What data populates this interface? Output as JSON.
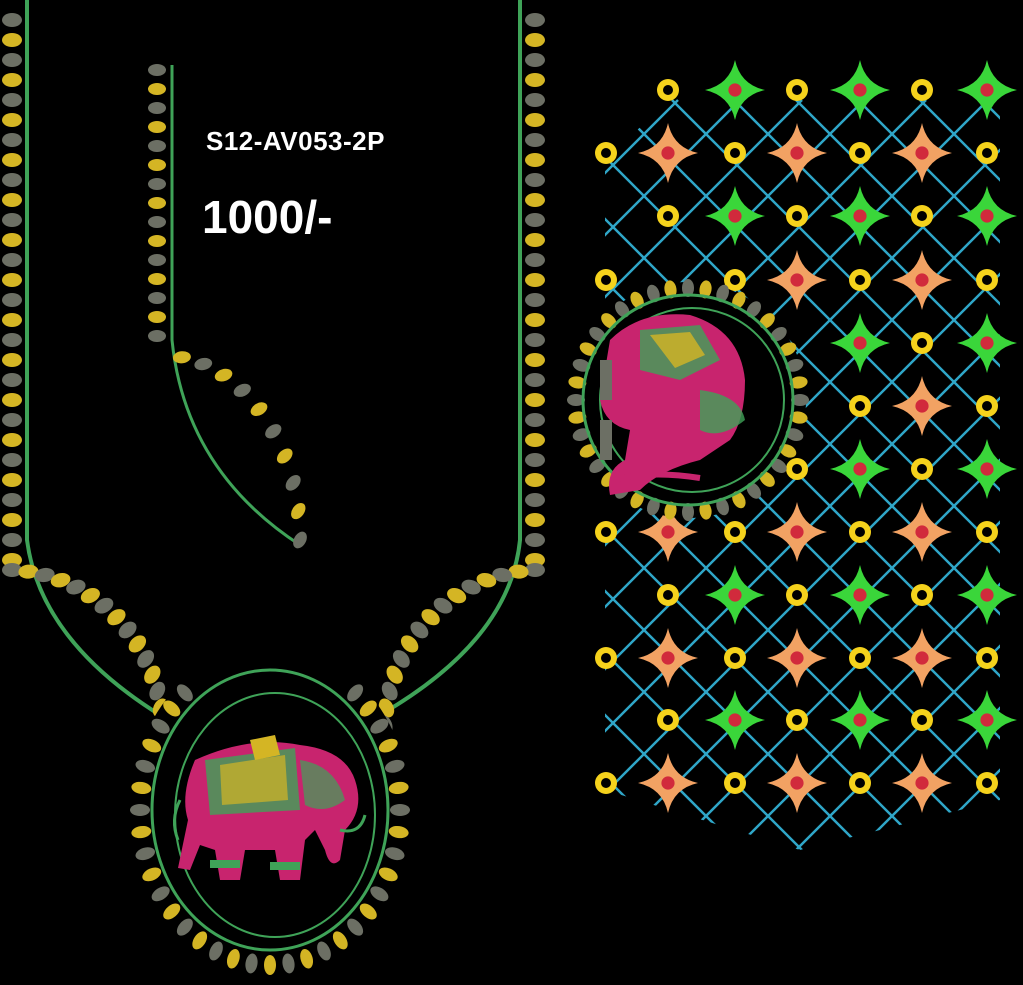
{
  "design": {
    "code": "S12-AV053-2P",
    "price": "1000/-"
  },
  "colors": {
    "background": "#000000",
    "gold": "#d4b524",
    "grey": "#6c6f64",
    "green_outline": "#3fa358",
    "magenta": "#c8246e",
    "teal_lattice": "#2fa6c8",
    "green_star": "#3ad63a",
    "peach_star": "#f2a263",
    "yellow_ring": "#f5d21c",
    "red_center": "#d12a3c"
  },
  "motifs": {
    "neckline": "elephant-medallion-icon",
    "sleeve": "elephant-crescent-icon",
    "pattern": "diamond-lattice-with-stars"
  }
}
